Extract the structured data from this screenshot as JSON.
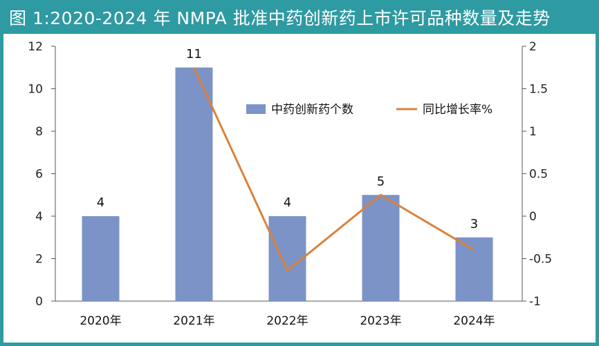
{
  "title": "图 1:2020-2024 年 NMPA 批准中药创新药上市许可品种数量及走势",
  "colors": {
    "frame": "#2e9aa2",
    "bar": "#7b93c6",
    "line": "#d9823e"
  },
  "chart_data": {
    "type": "bar",
    "categories": [
      "2020年",
      "2021年",
      "2022年",
      "2023年",
      "2024年"
    ],
    "series": [
      {
        "name": "中药创新药个数",
        "type": "bar",
        "axis": "left",
        "values": [
          4,
          11,
          4,
          5,
          3
        ]
      },
      {
        "name": "同比增长率%",
        "type": "line",
        "axis": "right",
        "values": [
          null,
          1.75,
          -0.64,
          0.25,
          -0.4
        ]
      }
    ],
    "data_labels": [
      "4",
      "11",
      "4",
      "5",
      "3"
    ],
    "y_left": {
      "ticks": [
        "0",
        "2",
        "4",
        "6",
        "8",
        "10",
        "12"
      ],
      "ylim": [
        0,
        12
      ]
    },
    "y_right": {
      "ticks": [
        "-1",
        "-0.5",
        "0",
        "0.5",
        "1",
        "1.5",
        "2"
      ],
      "ylim": [
        -1,
        2
      ]
    },
    "grid": false,
    "legend_position": "top-right"
  }
}
